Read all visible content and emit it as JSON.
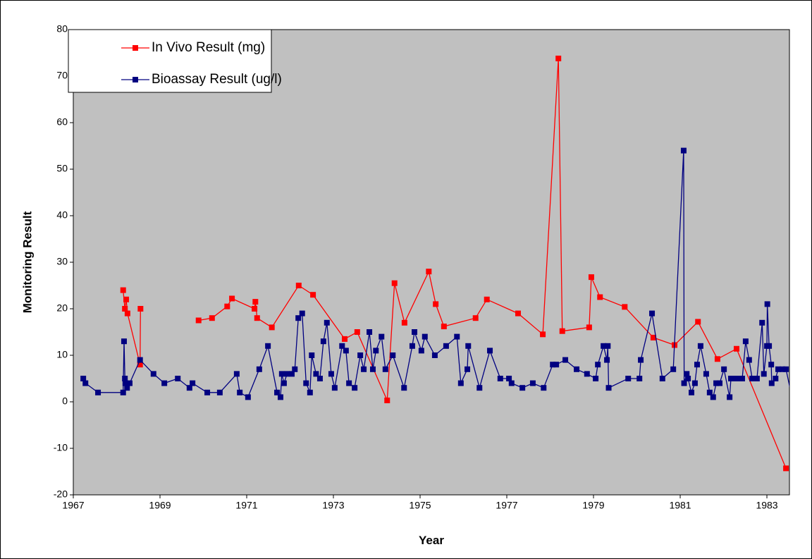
{
  "chart_data": {
    "type": "line",
    "x_label": "Year",
    "y_label": "Monitoring Result",
    "xlim": [
      1967,
      1983.52
    ],
    "xticks": [
      1967,
      1969,
      1971,
      1973,
      1975,
      1977,
      1979,
      1981,
      1983
    ],
    "ylim": [
      -20,
      80
    ],
    "yticks": [
      -20,
      -10,
      0,
      10,
      20,
      30,
      40,
      50,
      60,
      70,
      80
    ],
    "series": [
      {
        "name": "In Vivo Result (mg)",
        "color": "#ff0000",
        "x": [
          1968.15,
          1968.19,
          1968.22,
          1968.25,
          1968.54,
          1968.55,
          null,
          1969.89,
          1970.2,
          1970.55,
          1970.66,
          1971.18,
          1971.2,
          1971.24,
          1971.58,
          1972.2,
          1972.53,
          1973.26,
          1973.55,
          1974.24,
          1974.41,
          1974.64,
          1975.2,
          1975.36,
          1975.55,
          1976.28,
          1976.54,
          1977.26,
          1977.83,
          1978.19,
          1978.28,
          1978.9,
          1978.95,
          1979.15,
          1979.72,
          1980.38,
          1980.87,
          1981.41,
          1981.86,
          1982.3,
          1983.44
        ],
        "values": [
          24,
          20,
          22,
          19,
          8,
          20,
          null,
          17.5,
          18,
          20.5,
          22.2,
          20,
          21.5,
          18,
          16,
          25,
          23,
          13.5,
          15,
          0.3,
          25.5,
          17,
          28,
          21,
          16.2,
          18,
          22,
          19,
          14.5,
          73.8,
          15.2,
          16,
          26.8,
          22.5,
          20.4,
          13.8,
          12.2,
          17.2,
          9.2,
          11.4,
          -14.3
        ]
      },
      {
        "name": "Bioassay Result (ug/l)",
        "color": "#000080",
        "x": [
          1967.23,
          1967.28,
          1967.57,
          1968.15,
          1968.17,
          1968.19,
          1968.2,
          1968.24,
          1968.3,
          1968.54,
          1968.85,
          1969.1,
          1969.41,
          1969.68,
          1969.75,
          1970.09,
          1970.38,
          1970.77,
          1970.84,
          1971.03,
          1971.29,
          1971.49,
          1971.7,
          1971.78,
          1971.81,
          1971.86,
          1971.93,
          1972.04,
          1972.11,
          1972.19,
          1972.28,
          1972.37,
          1972.46,
          1972.5,
          1972.6,
          1972.69,
          1972.77,
          1972.85,
          1972.95,
          1973.03,
          1973.2,
          1973.29,
          1973.36,
          1973.49,
          1973.62,
          1973.7,
          1973.83,
          1973.91,
          1973.98,
          1974.11,
          1974.2,
          1974.37,
          1974.63,
          1974.82,
          1974.87,
          1975.03,
          1975.11,
          1975.34,
          1975.6,
          1975.85,
          1975.94,
          1976.09,
          1976.11,
          1976.37,
          1976.61,
          1976.85,
          1977.05,
          1977.11,
          1977.36,
          1977.6,
          1977.85,
          1978.06,
          1978.14,
          1978.35,
          1978.61,
          1978.85,
          1979.05,
          1979.1,
          1979.23,
          1979.31,
          1979.33,
          1979.35,
          1979.8,
          1980.06,
          1980.09,
          1980.35,
          1980.59,
          1980.84,
          1981.08,
          1981.09,
          1981.15,
          1981.18,
          1981.26,
          1981.34,
          1981.39,
          1981.47,
          1981.6,
          1981.68,
          1981.76,
          1981.83,
          1981.91,
          1982.01,
          1982.14,
          1982.17,
          1982.25,
          1982.33,
          1982.43,
          1982.51,
          1982.59,
          1982.66,
          1982.77,
          1982.89,
          1982.93,
          1983.0,
          1983.01,
          1983.05,
          1983.1,
          1983.11,
          1983.2,
          1983.26,
          1983.36,
          1983.44,
          1983.6
        ],
        "values": [
          5,
          4,
          2,
          2,
          13,
          5,
          4,
          3,
          4,
          9,
          6,
          4,
          5,
          3,
          4,
          2,
          2,
          6,
          2,
          1,
          7,
          12,
          2,
          1,
          6,
          4,
          6,
          6,
          7,
          18,
          19,
          4,
          2,
          10,
          6,
          5,
          13,
          17,
          6,
          3,
          12,
          11,
          4,
          3,
          10,
          7,
          15,
          7,
          11,
          14,
          7,
          10,
          3,
          12,
          15,
          11,
          14,
          10,
          12,
          14,
          4,
          7,
          12,
          3,
          11,
          5,
          5,
          4,
          3,
          4,
          3,
          8,
          8,
          9,
          7,
          6,
          5,
          8,
          12,
          9,
          12,
          3,
          5,
          5,
          9,
          19,
          5,
          7,
          54,
          4,
          6,
          5,
          2,
          4,
          8,
          12,
          6,
          2,
          1,
          4,
          4,
          7,
          1,
          5,
          5,
          5,
          5,
          13,
          9,
          5,
          5,
          17,
          6,
          12,
          21,
          12,
          8,
          4,
          5,
          7,
          7,
          7,
          0
        ]
      }
    ],
    "legend": "upper left",
    "plot_background": "#c0c0c0"
  }
}
